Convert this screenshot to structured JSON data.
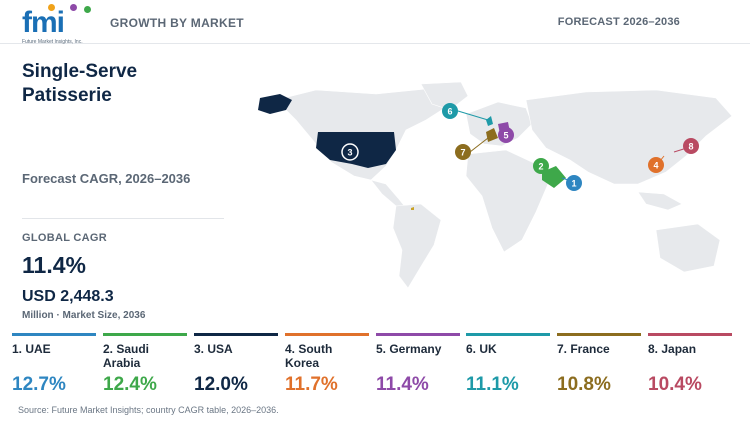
{
  "header": {
    "logo_text": "fmi",
    "logo_sub": "Future Market Insights, Inc.",
    "left_label": "GROWTH BY MARKET",
    "right_label": "FORECAST 2026–2036"
  },
  "summary": {
    "title": "Single-Serve Patisserie",
    "subtitle": "Forecast CAGR, 2026–2036",
    "global_cagr_label": "GLOBAL CAGR",
    "global_cagr_value": "11.4%",
    "market_size_value": "USD 2,448.3",
    "market_size_note": "Million · Market Size, 2036"
  },
  "countries": [
    {
      "rank": "1",
      "label": "1. UAE",
      "cagr": "12.7%",
      "color": "#2e86c1"
    },
    {
      "rank": "2",
      "label": "2. Saudi Arabia",
      "cagr": "12.4%",
      "color": "#3ea84a"
    },
    {
      "rank": "3",
      "label": "3. USA",
      "cagr": "12.0%",
      "color": "#0f2745"
    },
    {
      "rank": "4",
      "label": "4. South Korea",
      "cagr": "11.7%",
      "color": "#e0712b"
    },
    {
      "rank": "5",
      "label": "5. Germany",
      "cagr": "11.4%",
      "color": "#8e4aa8"
    },
    {
      "rank": "6",
      "label": "6. UK",
      "cagr": "11.1%",
      "color": "#1e9aa8"
    },
    {
      "rank": "7",
      "label": "7. France",
      "cagr": "10.8%",
      "color": "#8c6d1f"
    },
    {
      "rank": "8",
      "label": "8. Japan",
      "cagr": "10.4%",
      "color": "#b94a62"
    }
  ],
  "source": "Source: Future Market Insights; country CAGR table, 2026–2036."
}
